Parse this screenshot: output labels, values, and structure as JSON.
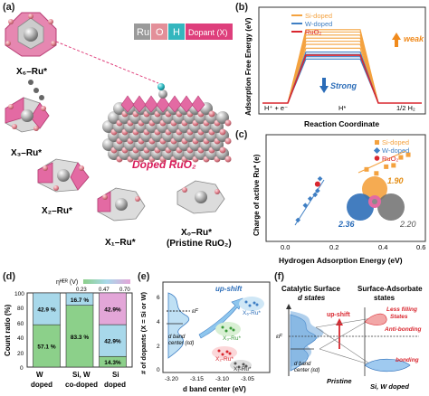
{
  "panels": {
    "a": "(a)",
    "b": "(b)",
    "c": "(c)",
    "d": "(d)",
    "e": "(e)",
    "f": "(f)"
  },
  "panel_a": {
    "legend": [
      "Ru",
      "O",
      "H",
      "Dopant (X)"
    ],
    "structure_labels": [
      "X₆–Ru*",
      "X₃–Ru*",
      "X₂–Ru*",
      "X₁–Ru*",
      "X₀–Ru*",
      "(Pristine RuO₂)"
    ],
    "main_label": "Doped RuO₂",
    "colors": {
      "ru": "#a9a9a9",
      "o": "#e7909a",
      "h": "#2bb9c1",
      "dopant": "#e0427d"
    }
  },
  "chart_data": [
    {
      "id": "b",
      "type": "line",
      "ylabel": "Adsorption Free Energy (eV)",
      "xlabel": "Reaction Coordinate",
      "x": [
        "H⁺ + e⁻",
        "H*",
        "1/2 H₂"
      ],
      "legend": [
        "Si-doped",
        "W-doped",
        "RuO₂"
      ],
      "annotations": [
        "weak",
        "Strong"
      ],
      "series": [
        {
          "group": "Si-doped",
          "values": [
            0,
            0.95,
            0
          ]
        },
        {
          "group": "Si-doped",
          "values": [
            0,
            0.92,
            0
          ]
        },
        {
          "group": "Si-doped",
          "values": [
            0,
            0.88,
            0
          ]
        },
        {
          "group": "Si-doped",
          "values": [
            0,
            0.84,
            0
          ]
        },
        {
          "group": "Si-doped",
          "values": [
            0,
            0.8,
            0
          ]
        },
        {
          "group": "Si-doped",
          "values": [
            0,
            0.76,
            0
          ]
        },
        {
          "group": "Si-doped",
          "values": [
            0,
            0.71,
            0
          ]
        },
        {
          "group": "W-doped",
          "values": [
            0,
            0.66,
            0
          ]
        },
        {
          "group": "W-doped",
          "values": [
            0,
            0.63,
            0
          ]
        },
        {
          "group": "W-doped",
          "values": [
            0,
            0.6,
            0
          ]
        },
        {
          "group": "W-doped",
          "values": [
            0,
            0.57,
            0
          ]
        },
        {
          "group": "RuO₂",
          "values": [
            0,
            0.62,
            0
          ]
        }
      ],
      "colors": {
        "Si-doped": "#f4a23f",
        "W-doped": "#3f7fc4",
        "RuO₂": "#d9262e"
      }
    },
    {
      "id": "c",
      "type": "scatter",
      "ylabel": "Charge of active Ru* (e)",
      "xlabel": "Hydrogen Adsorption Energy (eV)",
      "xlim": [
        -0.05,
        0.6
      ],
      "x_ticks": [
        "0.0",
        "0.2",
        "0.4",
        "0.6"
      ],
      "ylim": [
        1.7,
        2.5
      ],
      "legend": [
        "Si-doped",
        "W-doped",
        "RuO₂"
      ],
      "series": [
        {
          "name": "Si-doped",
          "points": [
            [
              0.36,
              2.24
            ],
            [
              0.4,
              2.21
            ],
            [
              0.44,
              2.26
            ],
            [
              0.47,
              2.27
            ],
            [
              0.5,
              2.33
            ],
            [
              0.53,
              2.35
            ]
          ]
        },
        {
          "name": "W-doped",
          "points": [
            [
              0.08,
              1.86
            ],
            [
              0.11,
              1.97
            ],
            [
              0.13,
              2.02
            ],
            [
              0.15,
              2.05
            ],
            [
              0.16,
              2.08
            ],
            [
              0.17,
              2.17
            ]
          ]
        },
        {
          "name": "RuO₂",
          "points": [
            [
              0.16,
              2.13
            ]
          ]
        }
      ],
      "annotations": [
        "1.90",
        "2.36",
        "2.20"
      ]
    },
    {
      "id": "d",
      "type": "bar",
      "ylabel": "Count ratio (%)",
      "colorbar_label": "ηᴴᴱᴿ (V)",
      "colorbar_ticks": [
        "0.23",
        "0.47",
        "0.70"
      ],
      "categories": [
        "W doped",
        "Si, W co-doped",
        "Si doped"
      ],
      "ylim": [
        0,
        100
      ],
      "y_ticks": [
        "0",
        "20",
        "40",
        "60",
        "80",
        "100"
      ],
      "stacks": [
        [
          {
            "value": 57.1,
            "label": "57.1 %",
            "color": "#8cd08a"
          },
          {
            "value": 42.9,
            "label": "42.9 %",
            "color": "#a8d8ea"
          }
        ],
        [
          {
            "value": 83.3,
            "label": "83.3 %",
            "color": "#8cd08a"
          },
          {
            "value": 16.7,
            "label": "16.7 %",
            "color": "#a8d8ea"
          }
        ],
        [
          {
            "value": 14.3,
            "label": "14.3%",
            "color": "#8cd08a"
          },
          {
            "value": 42.9,
            "label": "42.9%",
            "color": "#a8d8ea"
          },
          {
            "value": 42.9,
            "label": "42.9%",
            "color": "#e3a6d8"
          }
        ]
      ]
    },
    {
      "id": "e",
      "type": "scatter",
      "ylabel": "# of dopants (X = Si or W)",
      "xlabel": "d band center (eV)",
      "x_ticks": [
        "-3.20",
        "-3.15",
        "-3.10",
        "-3.05"
      ],
      "y_ticks": [
        "0",
        "2",
        "4",
        "6"
      ],
      "annotations": [
        "up-shift",
        "X₆-Ru*",
        "X₃-Ru*",
        "X₂-Ru*",
        "X₁-Ru*",
        "εF",
        "d band center (εd)"
      ],
      "clusters": [
        {
          "label": "X₆-Ru*",
          "n": 6,
          "d_center": -3.06
        },
        {
          "label": "X₃-Ru*",
          "n": 3,
          "d_center": -3.1
        },
        {
          "label": "X₂-Ru*",
          "n": 2,
          "d_center": -3.13
        },
        {
          "label": "X₁-Ru*",
          "n": 1,
          "d_center": -3.12
        }
      ]
    }
  ],
  "panel_f": {
    "headers": [
      "Catalytic Surface",
      "d states",
      "Surface-Adsorbate",
      "states"
    ],
    "labels": {
      "ef": "εF",
      "dband": "d band center (εd)",
      "upshift": "up-shift",
      "less_filling": "Less filling States",
      "anti": "Anti-bonding",
      "bonding": "bonding",
      "pristine": "Pristine",
      "siw": "Si, W doped"
    }
  }
}
